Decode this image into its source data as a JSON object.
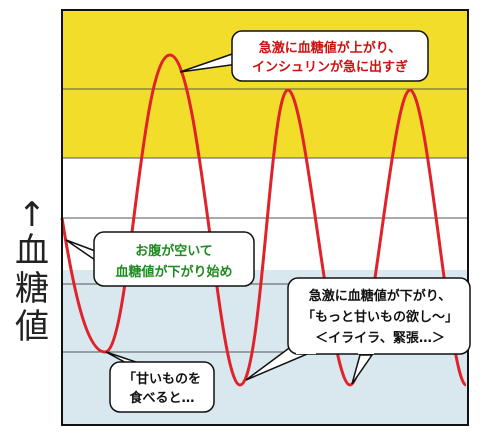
{
  "y_axis": {
    "arrow": "↑",
    "label_chars": [
      "血",
      "糖",
      "値"
    ]
  },
  "colors": {
    "high_band": "#f2de2a",
    "mid_band": "#ffffff",
    "low_band": "#d9e8ef",
    "curve": "#e0222a",
    "frame": "#111111",
    "callout_border": "#111111",
    "callout_red_text": "#cc1111",
    "callout_green_text": "#1f8a1f",
    "callout_black_text": "#111111"
  },
  "callouts": {
    "spike": {
      "lines": [
        "急激に血糖値が上がり、",
        "インシュリンが急に出すぎ"
      ]
    },
    "hungry": {
      "lines": [
        "お腹が空いて",
        "血糖値が下がり始め"
      ]
    },
    "eat_sweets": {
      "lines": [
        "「甘いものを",
        "食べると…"
      ]
    },
    "crash": {
      "lines": [
        "急激に血糖値が下がり、",
        "「もっと甘いもの欲し～」",
        "＜イライラ、緊張…＞"
      ]
    }
  }
}
